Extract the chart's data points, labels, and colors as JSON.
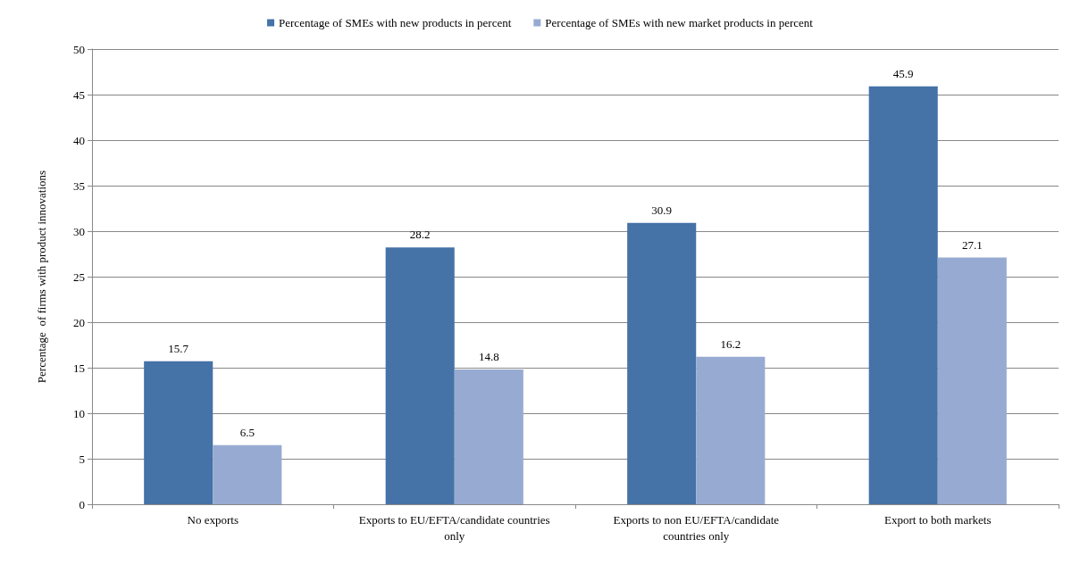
{
  "chart_data": {
    "type": "bar",
    "ylabel": "Percentage  of firms with product innovations",
    "categories": [
      "No exports",
      "Exports to EU/EFTA/candidate countries\nonly",
      "Exports to non EU/EFTA/candidate\ncountries only",
      "Export to both markets"
    ],
    "series": [
      {
        "name": "Percentage of SMEs with new products in percent",
        "color": "#4572a7",
        "values": [
          15.7,
          28.2,
          30.9,
          45.9
        ]
      },
      {
        "name": "Percentage of SMEs with new market products in percent",
        "color": "#97abd2",
        "values": [
          6.5,
          14.8,
          16.2,
          27.1
        ]
      }
    ],
    "ylim": [
      0,
      50
    ],
    "yticks": [
      0,
      5,
      10,
      15,
      20,
      25,
      30,
      35,
      40,
      45,
      50
    ],
    "grid": "y",
    "legend": "top",
    "data_labels": true
  }
}
